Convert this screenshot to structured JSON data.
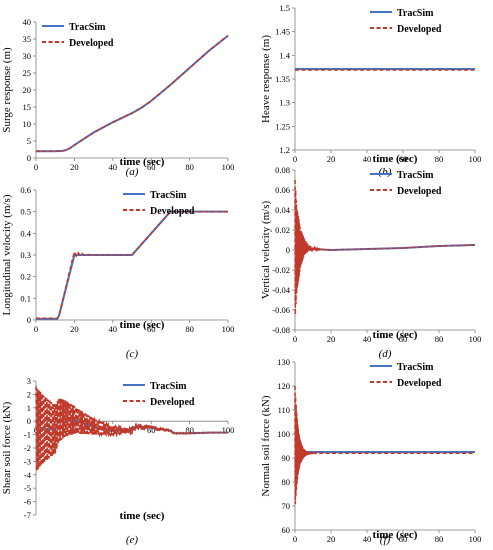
{
  "chart_data": [
    {
      "type": "line",
      "caption": "(a)",
      "xlabel": "time (sec)",
      "ylabel": "Surge response (m)",
      "xlim": [
        0,
        100
      ],
      "ylim": [
        0,
        40
      ],
      "xticks": [
        0,
        20,
        40,
        60,
        80,
        100
      ],
      "yticks": [
        0,
        5,
        10,
        15,
        20,
        25,
        30,
        35,
        40
      ],
      "ytick_labels": [
        "0",
        "5",
        "10",
        "15",
        "20",
        "25",
        "30",
        "35",
        "40"
      ],
      "legend": [
        "TracSim",
        "Developed"
      ],
      "legend_position": "top-left",
      "series": [
        {
          "name": "TracSim",
          "color": "#4472c4",
          "style": "solid",
          "x": [
            0,
            10,
            14,
            16,
            18,
            20,
            30,
            40,
            50,
            55,
            60,
            70,
            80,
            90,
            100
          ],
          "y": [
            2,
            2,
            2.1,
            2.4,
            3,
            3.8,
            7.5,
            10.5,
            13.2,
            14.8,
            16.8,
            21.5,
            26.5,
            31.5,
            36
          ]
        },
        {
          "name": "Developed",
          "color": "#c0392b",
          "style": "dashed",
          "x": [
            0,
            10,
            14,
            16,
            18,
            20,
            30,
            40,
            50,
            55,
            60,
            70,
            80,
            90,
            100
          ],
          "y": [
            2,
            2,
            2.1,
            2.4,
            3,
            3.8,
            7.5,
            10.5,
            13.2,
            14.8,
            16.8,
            21.5,
            26.5,
            31.5,
            36
          ]
        }
      ]
    },
    {
      "type": "line",
      "caption": "(b)",
      "xlabel": "time (sec)",
      "ylabel": "Heave response (m)",
      "xlim": [
        0,
        100
      ],
      "ylim": [
        1.2,
        1.5
      ],
      "xticks": [
        0,
        20,
        40,
        60,
        80,
        100
      ],
      "yticks": [
        1.2,
        1.25,
        1.3,
        1.35,
        1.4,
        1.45,
        1.5
      ],
      "ytick_labels": [
        "1.2",
        "1.25",
        "1.3",
        "1.35",
        "1.4",
        "1.45",
        "1.5"
      ],
      "legend": [
        "TracSim",
        "Developed"
      ],
      "legend_position": "top-right",
      "series": [
        {
          "name": "TracSim",
          "color": "#4472c4",
          "style": "solid",
          "x": [
            0,
            100
          ],
          "y": [
            1.371,
            1.371
          ]
        },
        {
          "name": "Developed",
          "color": "#c0392b",
          "style": "dashed",
          "x": [
            0,
            100
          ],
          "y": [
            1.369,
            1.369
          ]
        }
      ]
    },
    {
      "type": "line",
      "caption": "(c)",
      "xlabel": "time (sec)",
      "ylabel": "Longitudinal velocity (m/s)",
      "xlim": [
        0,
        100
      ],
      "ylim": [
        0,
        0.6
      ],
      "xticks": [
        0,
        20,
        40,
        60,
        80,
        100
      ],
      "yticks": [
        0,
        0.1,
        0.2,
        0.3,
        0.4,
        0.5,
        0.6
      ],
      "ytick_labels": [
        "0",
        "0.1",
        "0.2",
        "0.3",
        "0.4",
        "0.5",
        "0.6"
      ],
      "legend": [
        "TracSim",
        "Developed"
      ],
      "legend_position": "top-right",
      "series": [
        {
          "name": "TracSim",
          "color": "#4472c4",
          "style": "solid",
          "x": [
            0,
            11,
            12,
            20,
            21,
            50,
            70,
            100
          ],
          "y": [
            0.005,
            0.005,
            0.02,
            0.3,
            0.3,
            0.3,
            0.5,
            0.5
          ]
        },
        {
          "name": "Developed",
          "color": "#c0392b",
          "style": "dashed",
          "x": [
            0,
            11,
            12,
            19,
            20,
            21,
            22,
            23,
            24,
            25,
            26,
            27,
            28,
            30,
            50,
            70,
            100
          ],
          "y": [
            0.008,
            0.008,
            0.02,
            0.28,
            0.315,
            0.295,
            0.31,
            0.298,
            0.306,
            0.3,
            0.304,
            0.3,
            0.302,
            0.3,
            0.3,
            0.5,
            0.5
          ]
        }
      ]
    },
    {
      "type": "line",
      "caption": "(d)",
      "xlabel": "time (sec)",
      "ylabel": "Vertical velocity (m/s)",
      "xlim": [
        0,
        100
      ],
      "ylim": [
        -0.08,
        0.08
      ],
      "xticks": [
        0,
        20,
        40,
        60,
        80,
        100
      ],
      "yticks": [
        -0.08,
        -0.06,
        -0.04,
        -0.02,
        0,
        0.02,
        0.04,
        0.06,
        0.08
      ],
      "ytick_labels": [
        "-0.08",
        "-0.06",
        "-0.04",
        "-0.02",
        "0",
        "0.02",
        "0.04",
        "0.06",
        "0.08"
      ],
      "legend": [
        "TracSim",
        "Developed"
      ],
      "legend_position": "top-right",
      "series": [
        {
          "name": "TracSim",
          "color": "#4472c4",
          "style": "solid",
          "x": [
            0,
            5,
            10,
            20,
            40,
            60,
            80,
            100
          ],
          "y": [
            0,
            0.003,
            0.001,
            0,
            0.001,
            0.002,
            0.004,
            0.005
          ]
        },
        {
          "name": "Developed",
          "color": "#c0392b",
          "style": "dashed",
          "oscillation": {
            "amplitude": 0.07,
            "decay_s": 2.5,
            "period_s": 0.35
          },
          "x": [
            0,
            5,
            10,
            20,
            40,
            60,
            80,
            100
          ],
          "y": [
            0,
            0.003,
            0.001,
            0,
            0.001,
            0.002,
            0.004,
            0.005
          ]
        }
      ]
    },
    {
      "type": "line",
      "caption": "(e)",
      "xlabel": "time (sec)",
      "ylabel": "Shear soil force (kN)",
      "xlim": [
        0,
        100
      ],
      "ylim": [
        -7,
        3
      ],
      "xticks": [
        0,
        20,
        40,
        60,
        80,
        100
      ],
      "yticks": [
        -7,
        -6,
        -5,
        -4,
        -3,
        -2,
        -1,
        0,
        1,
        2,
        3
      ],
      "ytick_labels": [
        "-7",
        "-6",
        "-5",
        "-4",
        "-3",
        "-2",
        "-1",
        "0",
        "1",
        "2",
        "3"
      ],
      "x_axis_at": 0,
      "legend": [
        "TracSim",
        "Developed"
      ],
      "legend_position": "top-right",
      "series": [
        {
          "name": "TracSim",
          "color": "#4472c4",
          "style": "solid",
          "x": [
            0,
            5,
            10,
            12,
            15,
            20,
            30,
            40,
            50,
            52,
            60,
            70,
            72,
            80,
            90,
            100
          ],
          "y": [
            -0.6,
            -0.6,
            -0.6,
            0.1,
            0.2,
            0.1,
            -0.4,
            -0.7,
            -0.7,
            -0.4,
            -0.5,
            -0.7,
            -0.9,
            -0.9,
            -0.85,
            -0.85
          ]
        },
        {
          "name": "Developed",
          "color": "#c0392b",
          "style": "dashed",
          "oscillation": {
            "amplitude": 3.2,
            "decay_s": 18,
            "period_s": 0.8
          },
          "x": [
            0,
            5,
            10,
            12,
            15,
            20,
            30,
            40,
            50,
            52,
            60,
            70,
            72,
            80,
            90,
            100
          ],
          "y": [
            -0.6,
            -0.6,
            -0.6,
            0.1,
            0.2,
            0.1,
            -0.4,
            -0.7,
            -0.7,
            -0.4,
            -0.5,
            -0.7,
            -0.9,
            -0.9,
            -0.85,
            -0.85
          ]
        }
      ]
    },
    {
      "type": "line",
      "caption": "(f)",
      "xlabel": "time (sec)",
      "ylabel": "Normal soil force (kN)",
      "xlim": [
        0,
        100
      ],
      "ylim": [
        60,
        130
      ],
      "xticks": [
        0,
        20,
        40,
        60,
        80,
        100
      ],
      "yticks": [
        60,
        70,
        80,
        90,
        100,
        110,
        120,
        130
      ],
      "ytick_labels": [
        "60",
        "70",
        "80",
        "90",
        "100",
        "110",
        "120",
        "130"
      ],
      "legend": [
        "TracSim",
        "Developed"
      ],
      "legend_position": "top-right",
      "series": [
        {
          "name": "TracSim",
          "color": "#4472c4",
          "style": "solid",
          "x": [
            0,
            100
          ],
          "y": [
            92.5,
            92.5
          ]
        },
        {
          "name": "Developed",
          "color": "#c0392b",
          "style": "dashed",
          "oscillation": {
            "amplitude": 28,
            "decay_s": 1.8,
            "period_s": 0.3
          },
          "x": [
            0,
            100
          ],
          "y": [
            92,
            92
          ]
        }
      ]
    }
  ]
}
